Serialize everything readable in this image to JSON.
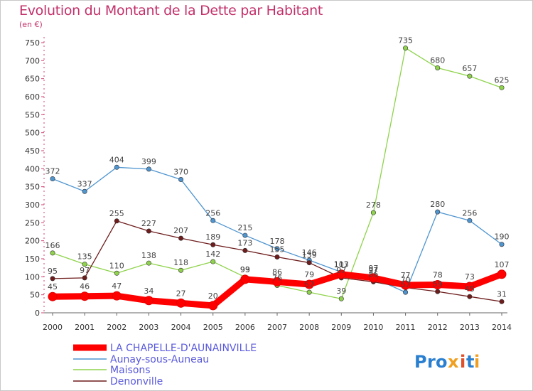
{
  "chart_data": {
    "type": "line",
    "title": "Evolution du Montant de la Dette par Habitant",
    "subtitle": "(en €)",
    "xlabel": "",
    "ylabel": "",
    "x": [
      "2000",
      "2001",
      "2002",
      "2003",
      "2004",
      "2005",
      "2006",
      "2007",
      "2008",
      "2009",
      "2010",
      "2011",
      "2012",
      "2013",
      "2014"
    ],
    "ylim": [
      0,
      750
    ],
    "yticks": [
      "0",
      "50",
      "100",
      "150",
      "200",
      "250",
      "300",
      "350",
      "400",
      "450",
      "500",
      "550",
      "600",
      "650",
      "700",
      "750"
    ],
    "grid": false,
    "legend_position": "bottom-left",
    "series": [
      {
        "name": "LA CHAPELLE-D'AUNAINVILLE",
        "color": "#ff0000",
        "values": [
          45,
          46,
          47,
          34,
          27,
          20,
          93,
          86,
          79,
          107,
          97,
          77,
          78,
          73,
          107
        ],
        "labels": [
          "45",
          "46",
          "47",
          "34",
          "27",
          "20",
          "93",
          "86",
          "79",
          "107",
          "97",
          "77",
          "78",
          "73",
          "107"
        ]
      },
      {
        "name": "Aunay-sous-Auneau",
        "color": "#4f95d0",
        "values": [
          372,
          337,
          404,
          399,
          370,
          256,
          215,
          178,
          146,
          113,
          97,
          57,
          280,
          256,
          190
        ],
        "labels": [
          "372",
          "337",
          "404",
          "399",
          "370",
          "256",
          "215",
          "178",
          "146",
          "113",
          "97",
          "57",
          "280",
          "256",
          "190"
        ]
      },
      {
        "name": "Maisons",
        "color": "#8fd34c",
        "values": [
          166,
          135,
          110,
          138,
          118,
          142,
          99,
          76,
          57,
          39,
          278,
          735,
          680,
          657,
          625
        ],
        "labels": [
          "166",
          "135",
          "110",
          "138",
          "118",
          "142",
          "99",
          "76",
          "57",
          "39",
          "278",
          "735",
          "680",
          "657",
          "625"
        ]
      },
      {
        "name": "Denonville",
        "color": "#6e1c1c",
        "values": [
          95,
          97,
          255,
          227,
          207,
          189,
          173,
          155,
          139,
          97,
          86,
          70,
          59,
          45,
          31
        ],
        "labels": [
          "95",
          "97",
          "255",
          "227",
          "207",
          "189",
          "173",
          "155",
          "139",
          "97",
          "86",
          "70",
          "59",
          "45",
          "31"
        ]
      }
    ]
  },
  "logo": {
    "text": "Proxiti"
  }
}
